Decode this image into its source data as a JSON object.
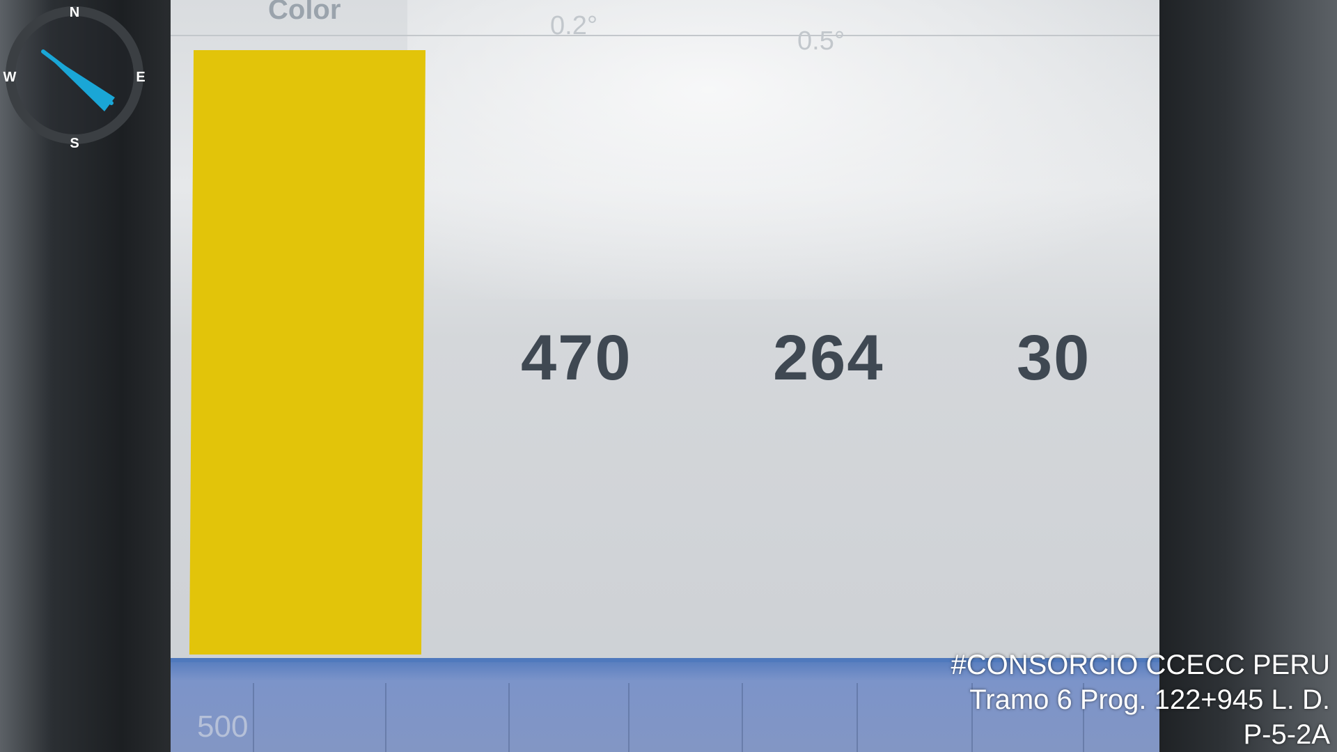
{
  "screen": {
    "header": {
      "color_label": "Color",
      "col1_value": "0.2°",
      "col2_value": "0.5°"
    },
    "swatch_color": "#e2c40a",
    "readings": [
      "470",
      "264",
      "30"
    ],
    "chart_axis_label": "500"
  },
  "compass": {
    "north": "N",
    "east": "E",
    "south": "S",
    "west": "W",
    "needle_color": "#1aa6d6"
  },
  "watermark": {
    "line1": "#CONSORCIO CCECC PERU",
    "line2": "Tramo 6 Prog. 122+945 L. D.",
    "line3": "P-5-2A"
  }
}
